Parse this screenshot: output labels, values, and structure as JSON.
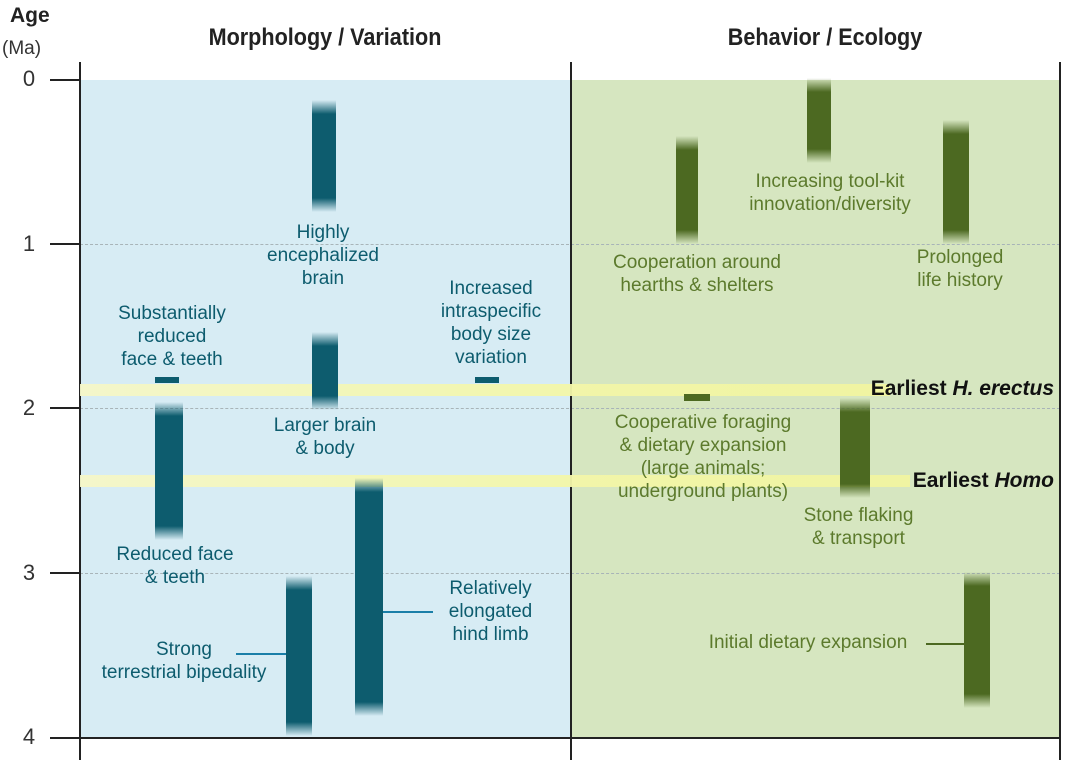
{
  "axis": {
    "title": "Age",
    "unit": "(Ma)",
    "ticks": [
      "0",
      "1",
      "2",
      "3",
      "4"
    ]
  },
  "columns": {
    "left": "Morphology / Variation",
    "right": "Behavior / Ecology"
  },
  "horizons": {
    "erectus": {
      "prefix": "Earliest ",
      "italic": "H. erectus",
      "age": 1.9
    },
    "homo": {
      "prefix": "Earliest ",
      "italic": "Homo",
      "age": 2.45
    }
  },
  "traits": {
    "brain": {
      "label": "Highly\nencephalized\nbrain",
      "start": 0.15,
      "end": 0.75
    },
    "face": {
      "label": "Substantially\nreduced\nface & teeth",
      "age": 1.8
    },
    "size": {
      "label": "Increased\nintraspecific\nbody size\nvariation",
      "age": 1.8
    },
    "larger": {
      "label": "Larger brain\n& body",
      "start": 1.55,
      "end": 2.0
    },
    "reduced": {
      "label": "Reduced face\n& teeth",
      "start": 2.0,
      "end": 2.8
    },
    "hind": {
      "label": "Relatively\nelongated\nhind limb",
      "start": 2.45,
      "end": 3.85
    },
    "biped": {
      "label": "Strong\nterrestrial bipedality",
      "start": 3.05,
      "end": 4.0
    }
  },
  "behaviors": {
    "toolkit": {
      "label": "Increasing tool-kit\ninnovation/diversity",
      "start": 0.0,
      "end": 0.5
    },
    "hearths": {
      "label": "Cooperation around\nhearths & shelters",
      "start": 0.35,
      "end": 1.0
    },
    "life": {
      "label": "Prolonged\nlife history",
      "start": 0.25,
      "end": 1.0
    },
    "foraging": {
      "label": "Cooperative foraging\n& dietary expansion\n(large animals;\nunderground plants)",
      "age": 1.95
    },
    "flaking": {
      "label": "Stone flaking\n& transport",
      "start": 1.95,
      "end": 2.55
    },
    "dietary": {
      "label": "Initial dietary expansion",
      "start": 3.0,
      "end": 3.8
    }
  }
}
